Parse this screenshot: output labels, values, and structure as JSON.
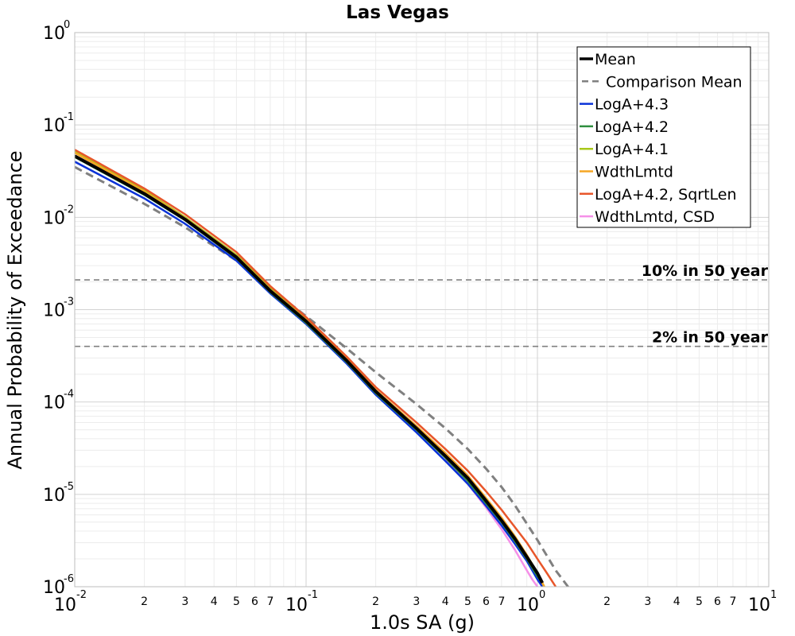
{
  "chart_data": {
    "type": "line",
    "title": "Las Vegas",
    "xlabel": "1.0s SA (g)",
    "ylabel": "Annual Probability of Exceedance",
    "x_scale": "log",
    "y_scale": "log",
    "xlim": [
      0.01,
      10
    ],
    "ylim": [
      1e-06,
      1
    ],
    "grid": true,
    "legend_position": "top-right",
    "x_major_ticks": [
      {
        "base": "10",
        "exp": "-2",
        "value": 0.01
      },
      {
        "base": "10",
        "exp": "-1",
        "value": 0.1
      },
      {
        "base": "10",
        "exp": "0",
        "value": 1
      },
      {
        "base": "10",
        "exp": "1",
        "value": 10
      }
    ],
    "x_minor_tick_labels": [
      "2",
      "3",
      "4",
      "5",
      "6",
      "7"
    ],
    "y_major_ticks": [
      {
        "base": "10",
        "exp": "0",
        "value": 1
      },
      {
        "base": "10",
        "exp": "-1",
        "value": 0.1
      },
      {
        "base": "10",
        "exp": "-2",
        "value": 0.01
      },
      {
        "base": "10",
        "exp": "-3",
        "value": 0.001
      },
      {
        "base": "10",
        "exp": "-4",
        "value": 0.0001
      },
      {
        "base": "10",
        "exp": "-5",
        "value": 1e-05
      },
      {
        "base": "10",
        "exp": "-6",
        "value": 1e-06
      }
    ],
    "reference_lines": [
      {
        "label": "10% in 50 year",
        "y": 0.0021,
        "color": "#808080"
      },
      {
        "label": "2% in 50 year",
        "y": 0.0004,
        "color": "#808080"
      }
    ],
    "series": [
      {
        "name": "Mean",
        "color": "#000000",
        "width": 4,
        "dash": "",
        "points": [
          [
            0.01,
            0.046
          ],
          [
            0.02,
            0.018
          ],
          [
            0.03,
            0.0095
          ],
          [
            0.05,
            0.0037
          ],
          [
            0.07,
            0.0016
          ],
          [
            0.1,
            0.00075
          ],
          [
            0.15,
            0.00028
          ],
          [
            0.2,
            0.00013
          ],
          [
            0.3,
            5.2e-05
          ],
          [
            0.4,
            2.6e-05
          ],
          [
            0.5,
            1.5e-05
          ],
          [
            0.6,
            8.5e-06
          ],
          [
            0.7,
            5.2e-06
          ],
          [
            0.8,
            3.3e-06
          ],
          [
            0.9,
            2.1e-06
          ],
          [
            1.0,
            1.4e-06
          ],
          [
            1.05,
            1.1e-06
          ]
        ]
      },
      {
        "name": "Comparison Mean",
        "color": "#808080",
        "width": 3,
        "dash": "10,6",
        "points": [
          [
            0.01,
            0.035
          ],
          [
            0.02,
            0.014
          ],
          [
            0.03,
            0.0078
          ],
          [
            0.05,
            0.0034
          ],
          [
            0.07,
            0.0017
          ],
          [
            0.1,
            0.00085
          ],
          [
            0.15,
            0.00038
          ],
          [
            0.2,
            0.00021
          ],
          [
            0.3,
            9.5e-05
          ],
          [
            0.4,
            5.2e-05
          ],
          [
            0.5,
            3.1e-05
          ],
          [
            0.6,
            1.9e-05
          ],
          [
            0.7,
            1.2e-05
          ],
          [
            0.8,
            7.6e-06
          ],
          [
            1.0,
            3.2e-06
          ],
          [
            1.2,
            1.5e-06
          ],
          [
            1.4,
            9e-07
          ]
        ]
      },
      {
        "name": "LogA+4.3",
        "color": "#0a32d8",
        "width": 2.5,
        "dash": "",
        "points": [
          [
            0.01,
            0.04
          ],
          [
            0.02,
            0.016
          ],
          [
            0.03,
            0.0085
          ],
          [
            0.05,
            0.0034
          ],
          [
            0.07,
            0.0015
          ],
          [
            0.1,
            0.0007
          ],
          [
            0.15,
            0.00026
          ],
          [
            0.2,
            0.00012
          ],
          [
            0.3,
            4.7e-05
          ],
          [
            0.4,
            2.3e-05
          ],
          [
            0.5,
            1.3e-05
          ],
          [
            0.6,
            7.5e-06
          ],
          [
            0.7,
            4.6e-06
          ],
          [
            0.8,
            2.9e-06
          ],
          [
            0.9,
            1.9e-06
          ],
          [
            1.0,
            1.2e-06
          ],
          [
            1.05,
            1e-06
          ]
        ]
      },
      {
        "name": "LogA+4.2",
        "color": "#2f8f3f",
        "width": 2.5,
        "dash": "",
        "points": [
          [
            0.01,
            0.045
          ],
          [
            0.02,
            0.0175
          ],
          [
            0.03,
            0.0093
          ],
          [
            0.05,
            0.0036
          ],
          [
            0.07,
            0.00155
          ],
          [
            0.1,
            0.00072
          ],
          [
            0.15,
            0.00027
          ],
          [
            0.2,
            0.000125
          ],
          [
            0.3,
            5e-05
          ],
          [
            0.4,
            2.5e-05
          ],
          [
            0.5,
            1.4e-05
          ],
          [
            0.6,
            8e-06
          ],
          [
            0.7,
            5e-06
          ],
          [
            0.8,
            3.1e-06
          ],
          [
            0.9,
            2e-06
          ],
          [
            1.0,
            1.3e-06
          ],
          [
            1.05,
            1.1e-06
          ]
        ]
      },
      {
        "name": "LogA+4.1",
        "color": "#a8c81a",
        "width": 2.5,
        "dash": "",
        "points": [
          [
            0.01,
            0.052
          ],
          [
            0.02,
            0.0195
          ],
          [
            0.03,
            0.01
          ],
          [
            0.05,
            0.0039
          ],
          [
            0.07,
            0.0017
          ],
          [
            0.1,
            0.00078
          ],
          [
            0.15,
            0.00029
          ],
          [
            0.2,
            0.000135
          ],
          [
            0.3,
            5.4e-05
          ],
          [
            0.4,
            2.7e-05
          ],
          [
            0.5,
            1.55e-05
          ],
          [
            0.6,
            8.8e-06
          ],
          [
            0.7,
            5.4e-06
          ],
          [
            0.8,
            3.4e-06
          ],
          [
            0.9,
            2.2e-06
          ],
          [
            1.0,
            1.4e-06
          ],
          [
            1.07,
            1e-06
          ]
        ]
      },
      {
        "name": "WdthLmtd",
        "color": "#f5a623",
        "width": 2.5,
        "dash": "",
        "points": [
          [
            0.01,
            0.05
          ],
          [
            0.02,
            0.019
          ],
          [
            0.03,
            0.0098
          ],
          [
            0.05,
            0.0038
          ],
          [
            0.07,
            0.00165
          ],
          [
            0.1,
            0.00077
          ],
          [
            0.15,
            0.00029
          ],
          [
            0.2,
            0.000135
          ],
          [
            0.3,
            5.5e-05
          ],
          [
            0.4,
            2.8e-05
          ],
          [
            0.5,
            1.6e-05
          ],
          [
            0.6,
            9.1e-06
          ],
          [
            0.7,
            5.6e-06
          ],
          [
            0.8,
            3.5e-06
          ],
          [
            0.9,
            2.2e-06
          ],
          [
            1.0,
            1.4e-06
          ],
          [
            1.07,
            1e-06
          ]
        ]
      },
      {
        "name": "LogA+4.2, SqrtLen",
        "color": "#e8562a",
        "width": 2.5,
        "dash": "",
        "points": [
          [
            0.01,
            0.054
          ],
          [
            0.02,
            0.0205
          ],
          [
            0.03,
            0.0108
          ],
          [
            0.05,
            0.0042
          ],
          [
            0.07,
            0.0018
          ],
          [
            0.1,
            0.00083
          ],
          [
            0.15,
            0.00031
          ],
          [
            0.2,
            0.000145
          ],
          [
            0.3,
            6e-05
          ],
          [
            0.4,
            3.1e-05
          ],
          [
            0.5,
            1.8e-05
          ],
          [
            0.6,
            1.08e-05
          ],
          [
            0.7,
            6.8e-06
          ],
          [
            0.8,
            4.4e-06
          ],
          [
            0.9,
            3e-06
          ],
          [
            1.0,
            2e-06
          ],
          [
            1.1,
            1.4e-06
          ],
          [
            1.2,
            1e-06
          ]
        ]
      },
      {
        "name": "WdthLmtd, CSD",
        "color": "#f590e8",
        "width": 2.5,
        "dash": "",
        "points": [
          [
            0.4,
            2.4e-05
          ],
          [
            0.5,
            1.3e-05
          ],
          [
            0.6,
            7.2e-06
          ],
          [
            0.7,
            4.2e-06
          ],
          [
            0.8,
            2.5e-06
          ],
          [
            0.9,
            1.5e-06
          ],
          [
            0.95,
            1.2e-06
          ],
          [
            1.0,
            1e-06
          ]
        ]
      }
    ]
  }
}
